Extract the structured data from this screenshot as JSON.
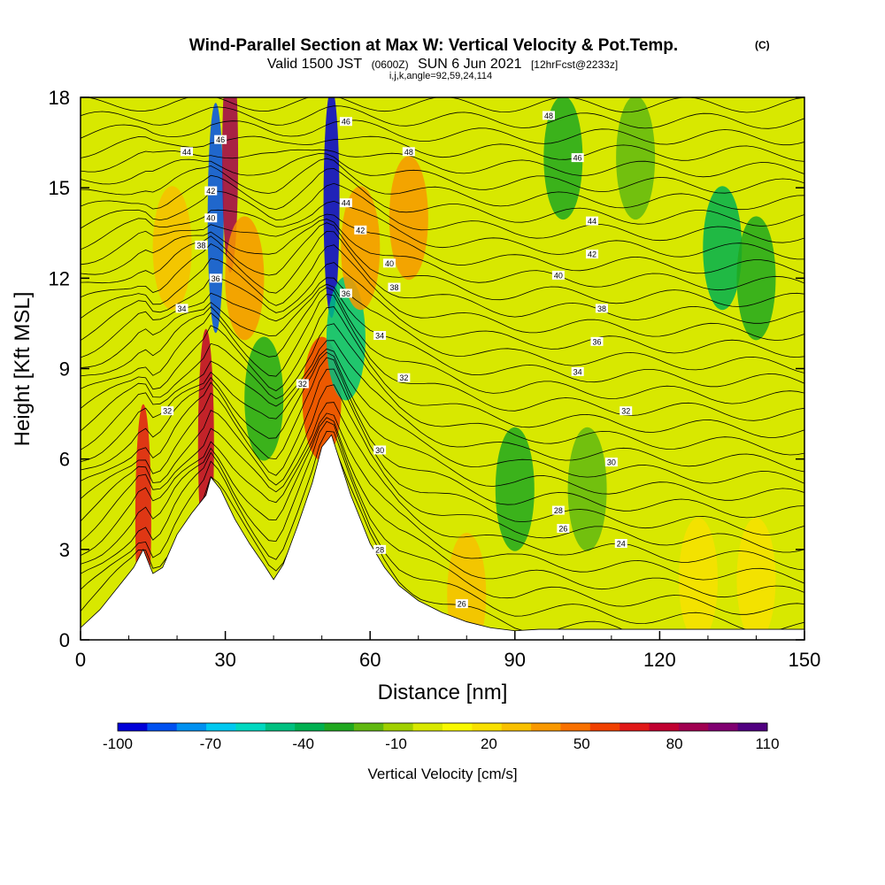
{
  "header": {
    "title": "Wind-Parallel Section at Max W: Vertical Velocity & Pot.Temp.",
    "title_tag": "(C)",
    "subtitle_valid": "Valid 1500 JST",
    "subtitle_utc": "(0600Z)",
    "subtitle_date": "SUN 6 Jun 2021",
    "subtitle_fcst": "[12hrFcst@2233z]",
    "subtitle_ijk": "i,j,k,angle=92,59,24,114"
  },
  "colorbar": {
    "label": "Vertical Velocity [cm/s]",
    "tick_labels": [
      "-100",
      "-70",
      "-40",
      "-10",
      "20",
      "50",
      "80",
      "110"
    ],
    "tick_values": [
      -100,
      -70,
      -40,
      -10,
      20,
      50,
      80,
      110
    ],
    "colors": [
      "#0000d8",
      "#0050f0",
      "#0090f0",
      "#00c8f0",
      "#00d8c0",
      "#00c080",
      "#00b050",
      "#20a820",
      "#60b810",
      "#a0d000",
      "#d8e800",
      "#f8f800",
      "#f8e000",
      "#f8c000",
      "#f89800",
      "#f87000",
      "#f04000",
      "#e01818",
      "#c00030",
      "#a00050",
      "#800070",
      "#500080"
    ]
  },
  "chart_data": {
    "type": "heatmap",
    "title": "Wind-Parallel Section at Max W: Vertical Velocity & Pot.Temp.",
    "xlabel": "Distance [nm]",
    "ylabel": "Height [Kft MSL]",
    "xlim": [
      0,
      150
    ],
    "ylim": [
      0,
      18
    ],
    "x_ticks": [
      "0",
      "30",
      "60",
      "90",
      "120",
      "150"
    ],
    "x_tick_values": [
      0,
      30,
      60,
      90,
      120,
      150
    ],
    "y_ticks": [
      "0",
      "3",
      "6",
      "9",
      "12",
      "15",
      "18"
    ],
    "y_tick_values": [
      0,
      3,
      6,
      9,
      12,
      15,
      18
    ],
    "fill_variable": "Vertical Velocity [cm/s]",
    "contour_variable": "Potential Temperature",
    "background_value": 0,
    "features": [
      {
        "x": 13,
        "y": 4.0,
        "value": 70
      },
      {
        "x": 19,
        "y": 13.0,
        "value": 30
      },
      {
        "x": 26,
        "y": 6.5,
        "value": 80
      },
      {
        "x": 28,
        "y": 14.0,
        "value": -85
      },
      {
        "x": 31,
        "y": 16.0,
        "value": 90
      },
      {
        "x": 34,
        "y": 12.0,
        "value": 35
      },
      {
        "x": 38,
        "y": 8.0,
        "value": -30
      },
      {
        "x": 50,
        "y": 8.0,
        "value": 60
      },
      {
        "x": 52,
        "y": 14.5,
        "value": -95
      },
      {
        "x": 55,
        "y": 10.0,
        "value": -50
      },
      {
        "x": 58,
        "y": 13.0,
        "value": 40
      },
      {
        "x": 68,
        "y": 14.0,
        "value": 35
      },
      {
        "x": 80,
        "y": 1.5,
        "value": 25
      },
      {
        "x": 90,
        "y": 5.0,
        "value": -25
      },
      {
        "x": 105,
        "y": 5.0,
        "value": -20
      },
      {
        "x": 100,
        "y": 16.0,
        "value": -25
      },
      {
        "x": 115,
        "y": 16.0,
        "value": -15
      },
      {
        "x": 133,
        "y": 13.0,
        "value": -40
      },
      {
        "x": 140,
        "y": 12.0,
        "value": -30
      },
      {
        "x": 128,
        "y": 2.0,
        "value": 15
      },
      {
        "x": 140,
        "y": 2.0,
        "value": 20
      }
    ],
    "terrain_profile": {
      "x": [
        0,
        4,
        8,
        11,
        13,
        15,
        17,
        20,
        23,
        26,
        27,
        29,
        32,
        35,
        38,
        40,
        42,
        45,
        48,
        50,
        52,
        54,
        56,
        58,
        60,
        63,
        66,
        70,
        75,
        80,
        85,
        90,
        95,
        100,
        110,
        120,
        130,
        140,
        150
      ],
      "y": [
        0.4,
        1.0,
        1.8,
        2.4,
        3.0,
        2.2,
        2.4,
        3.5,
        4.2,
        4.8,
        5.4,
        5.0,
        4.0,
        3.2,
        2.5,
        2.0,
        2.5,
        3.8,
        5.2,
        6.4,
        6.8,
        5.8,
        4.8,
        4.0,
        3.2,
        2.4,
        1.8,
        1.3,
        0.9,
        0.6,
        0.4,
        0.3,
        0.35,
        0.35,
        0.35,
        0.35,
        0.35,
        0.35,
        0.35
      ]
    },
    "contour_labels": [
      {
        "x": 22,
        "y": 16.2,
        "text": "44"
      },
      {
        "x": 29,
        "y": 16.6,
        "text": "46"
      },
      {
        "x": 27,
        "y": 14.9,
        "text": "42"
      },
      {
        "x": 27,
        "y": 14.0,
        "text": "40"
      },
      {
        "x": 25,
        "y": 13.1,
        "text": "38"
      },
      {
        "x": 28,
        "y": 12.0,
        "text": "36"
      },
      {
        "x": 21,
        "y": 11.0,
        "text": "34"
      },
      {
        "x": 18,
        "y": 7.6,
        "text": "32"
      },
      {
        "x": 46,
        "y": 8.5,
        "text": "32"
      },
      {
        "x": 55,
        "y": 17.2,
        "text": "46"
      },
      {
        "x": 55,
        "y": 14.5,
        "text": "44"
      },
      {
        "x": 58,
        "y": 13.6,
        "text": "42"
      },
      {
        "x": 64,
        "y": 12.5,
        "text": "40"
      },
      {
        "x": 65,
        "y": 11.7,
        "text": "38"
      },
      {
        "x": 55,
        "y": 11.5,
        "text": "36"
      },
      {
        "x": 62,
        "y": 10.1,
        "text": "34"
      },
      {
        "x": 67,
        "y": 8.7,
        "text": "32"
      },
      {
        "x": 62,
        "y": 6.3,
        "text": "30"
      },
      {
        "x": 62,
        "y": 3.0,
        "text": "28"
      },
      {
        "x": 79,
        "y": 1.2,
        "text": "26"
      },
      {
        "x": 68,
        "y": 16.2,
        "text": "48"
      },
      {
        "x": 97,
        "y": 17.4,
        "text": "48"
      },
      {
        "x": 103,
        "y": 16.0,
        "text": "46"
      },
      {
        "x": 106,
        "y": 13.9,
        "text": "44"
      },
      {
        "x": 106,
        "y": 12.8,
        "text": "42"
      },
      {
        "x": 99,
        "y": 12.1,
        "text": "40"
      },
      {
        "x": 108,
        "y": 11.0,
        "text": "38"
      },
      {
        "x": 107,
        "y": 9.9,
        "text": "36"
      },
      {
        "x": 103,
        "y": 8.9,
        "text": "34"
      },
      {
        "x": 113,
        "y": 7.6,
        "text": "32"
      },
      {
        "x": 110,
        "y": 5.9,
        "text": "30"
      },
      {
        "x": 99,
        "y": 4.3,
        "text": "28"
      },
      {
        "x": 100,
        "y": 3.7,
        "text": "26"
      },
      {
        "x": 112,
        "y": 3.2,
        "text": "24"
      }
    ]
  }
}
